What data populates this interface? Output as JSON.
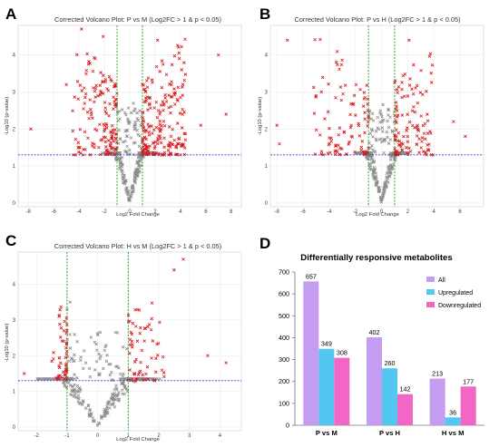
{
  "panels": {
    "A": "A",
    "B": "B",
    "C": "C",
    "D": "D"
  },
  "colors": {
    "significant": "#d7191c",
    "nonsignificant": "#8c8c8c",
    "fc_line": "#1a9a1a",
    "p_line": "#3a3acc",
    "all": "#c49cf0",
    "upregulated": "#54c6f2",
    "downregulated": "#f266c6"
  },
  "chart_data": [
    {
      "type": "scatter",
      "title": "Corrected Volcano Plot: P vs M (Log2FC > 1 & p < 0.05)",
      "xlabel": "Log2 Fold Change",
      "ylabel": "-Log10 (p-value)",
      "xlim": [
        -8.8,
        8.8
      ],
      "ylim": [
        -0.1,
        4.8
      ],
      "xticks": [
        -8,
        -6,
        -4,
        -2,
        0,
        2,
        4,
        6,
        8
      ],
      "yticks": [
        0,
        1,
        2,
        3,
        4
      ],
      "fc_threshold": 1,
      "p_threshold_neglog10": 1.3,
      "grid": true,
      "points": {
        "left_span": 4.5,
        "right_span": 4.4,
        "significant": 657,
        "seed": 11,
        "outliers": [
          [
            -3.8,
            4.7
          ],
          [
            -2.1,
            4.5
          ],
          [
            -7.8,
            2.0
          ],
          [
            7.6,
            2.4
          ],
          [
            5.6,
            2.1
          ],
          [
            7.0,
            4.0
          ],
          [
            2.2,
            4.4
          ],
          [
            -5.0,
            3.2
          ]
        ]
      }
    },
    {
      "type": "scatter",
      "title": "Corrected Volcano Plot: P vs H (Log2FC > 1 & p < 0.05)",
      "xlabel": "Log2 Fold Change",
      "ylabel": "-Log10 (p-value)",
      "xlim": [
        -8.5,
        7.8
      ],
      "ylim": [
        -0.1,
        4.8
      ],
      "xticks": [
        -8,
        -6,
        -4,
        -2,
        0,
        2,
        4,
        6
      ],
      "yticks": [
        0,
        1,
        2,
        3,
        4
      ],
      "fc_threshold": 1,
      "p_threshold_neglog10": 1.3,
      "grid": true,
      "points": {
        "left_span": 5.2,
        "right_span": 4.0,
        "significant": 402,
        "seed": 23,
        "outliers": [
          [
            -7.2,
            4.4
          ],
          [
            -7.8,
            1.6
          ],
          [
            -8.0,
            2.1
          ],
          [
            2.1,
            4.4
          ],
          [
            6.4,
            1.8
          ],
          [
            5.5,
            2.2
          ],
          [
            -4.6,
            3.0
          ]
        ]
      }
    },
    {
      "type": "scatter",
      "title": "Corrected Volcano Plot: H vs M (Log2FC > 1 & p < 0.05)",
      "xlabel": "Log2 Fold Change",
      "ylabel": "-Log10 (p-value)",
      "xlim": [
        -2.6,
        4.7
      ],
      "ylim": [
        -0.1,
        4.9
      ],
      "xticks": [
        -2,
        -1,
        0,
        1,
        2,
        3,
        4
      ],
      "yticks": [
        0,
        1,
        2,
        3,
        4
      ],
      "fc_threshold": 1,
      "p_threshold_neglog10": 1.3,
      "grid": true,
      "points": {
        "left_span": 1.5,
        "right_span": 2.3,
        "significant": 213,
        "seed": 37,
        "outliers": [
          [
            2.8,
            4.7
          ],
          [
            2.5,
            4.4
          ],
          [
            -0.9,
            3.5
          ],
          [
            -1.0,
            3.3
          ],
          [
            4.2,
            1.8
          ],
          [
            3.6,
            2.0
          ],
          [
            -2.4,
            1.5
          ]
        ]
      }
    },
    {
      "type": "bar",
      "title": "Differentially responsive metabolites",
      "categories": [
        "P vs M",
        "P vs H",
        "H vs M"
      ],
      "series": [
        {
          "name": "All",
          "values": [
            657,
            402,
            213
          ]
        },
        {
          "name": "Upregulated",
          "values": [
            349,
            260,
            36
          ]
        },
        {
          "name": "Downregulated",
          "values": [
            308,
            142,
            177
          ]
        }
      ],
      "ylim": [
        0,
        700
      ],
      "yticks": [
        0,
        100,
        200,
        300,
        400,
        500,
        600,
        700
      ],
      "legend": "top-right",
      "grid": false
    }
  ]
}
